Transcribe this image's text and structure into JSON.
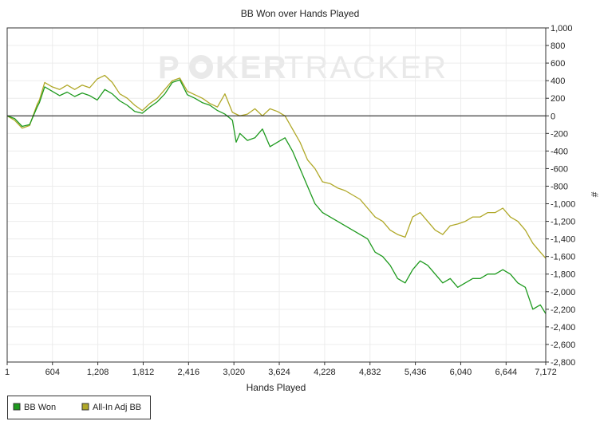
{
  "chart_data": {
    "type": "line",
    "title": "BB Won over Hands Played",
    "xlabel": "Hands Played",
    "ylabel": "#",
    "watermark": {
      "left": "P",
      "right": "KER",
      "brand2": "TRACKER",
      "logo_icon": "poker-chip-icon"
    },
    "xlim": [
      1,
      7172
    ],
    "ylim": [
      -2800,
      1000
    ],
    "x_ticks": [
      1,
      604,
      1208,
      1812,
      2416,
      3020,
      3624,
      4228,
      4832,
      5436,
      6040,
      6644,
      7172
    ],
    "x_tick_labels": [
      "1",
      "604",
      "1,208",
      "1,812",
      "2,416",
      "3,020",
      "3,624",
      "4,228",
      "4,832",
      "5,436",
      "6,040",
      "6,644",
      "7,172"
    ],
    "y_ticks": [
      1000,
      800,
      600,
      400,
      200,
      0,
      -200,
      -400,
      -600,
      -800,
      -1000,
      -1200,
      -1400,
      -1600,
      -1800,
      -2000,
      -2200,
      -2400,
      -2600,
      -2800
    ],
    "y_tick_labels": [
      "1,000",
      "800",
      "600",
      "400",
      "200",
      "0",
      "-200",
      "-400",
      "-600",
      "-800",
      "-1,000",
      "-1,200",
      "-1,400",
      "-1,600",
      "-1,800",
      "-2,000",
      "-2,200",
      "-2,400",
      "-2,600",
      "-2,800"
    ],
    "grid": true,
    "zero_line": true,
    "legend_position": "bottom-left",
    "x": [
      1,
      100,
      200,
      300,
      400,
      430,
      500,
      600,
      700,
      800,
      900,
      1000,
      1100,
      1200,
      1300,
      1400,
      1500,
      1600,
      1700,
      1800,
      1900,
      2000,
      2100,
      2200,
      2300,
      2400,
      2500,
      2600,
      2700,
      2800,
      2900,
      3000,
      3050,
      3100,
      3200,
      3300,
      3400,
      3500,
      3600,
      3700,
      3800,
      3900,
      4000,
      4100,
      4200,
      4300,
      4400,
      4500,
      4600,
      4700,
      4800,
      4900,
      5000,
      5100,
      5200,
      5300,
      5400,
      5500,
      5600,
      5700,
      5800,
      5900,
      6000,
      6100,
      6200,
      6300,
      6400,
      6500,
      6600,
      6700,
      6800,
      6900,
      7000,
      7100,
      7172
    ],
    "series": [
      {
        "name": "BB Won",
        "color": "#1e9a1e",
        "values": [
          0,
          -30,
          -120,
          -100,
          100,
          150,
          330,
          280,
          230,
          270,
          220,
          260,
          230,
          180,
          300,
          250,
          170,
          120,
          50,
          30,
          100,
          160,
          250,
          380,
          410,
          240,
          200,
          150,
          120,
          60,
          20,
          -50,
          -300,
          -200,
          -280,
          -250,
          -150,
          -350,
          -300,
          -250,
          -400,
          -600,
          -800,
          -1000,
          -1100,
          -1150,
          -1200,
          -1250,
          -1300,
          -1350,
          -1400,
          -1550,
          -1600,
          -1700,
          -1850,
          -1900,
          -1750,
          -1650,
          -1700,
          -1800,
          -1900,
          -1850,
          -1950,
          -1900,
          -1850,
          -1850,
          -1800,
          -1800,
          -1750,
          -1800,
          -1900,
          -1950,
          -2200,
          -2150,
          -2250
        ]
      },
      {
        "name": "All-In Adj BB",
        "color": "#b0a828",
        "values": [
          0,
          -50,
          -140,
          -110,
          130,
          180,
          380,
          330,
          300,
          350,
          300,
          350,
          320,
          420,
          460,
          380,
          250,
          200,
          120,
          60,
          140,
          200,
          300,
          400,
          430,
          280,
          240,
          200,
          140,
          100,
          250,
          40,
          20,
          0,
          20,
          80,
          0,
          80,
          50,
          0,
          -150,
          -300,
          -500,
          -600,
          -750,
          -770,
          -820,
          -850,
          -900,
          -950,
          -1050,
          -1150,
          -1200,
          -1300,
          -1350,
          -1380,
          -1150,
          -1100,
          -1200,
          -1300,
          -1350,
          -1250,
          -1230,
          -1200,
          -1150,
          -1150,
          -1100,
          -1100,
          -1050,
          -1150,
          -1200,
          -1300,
          -1450,
          -1550,
          -1620
        ]
      }
    ]
  }
}
